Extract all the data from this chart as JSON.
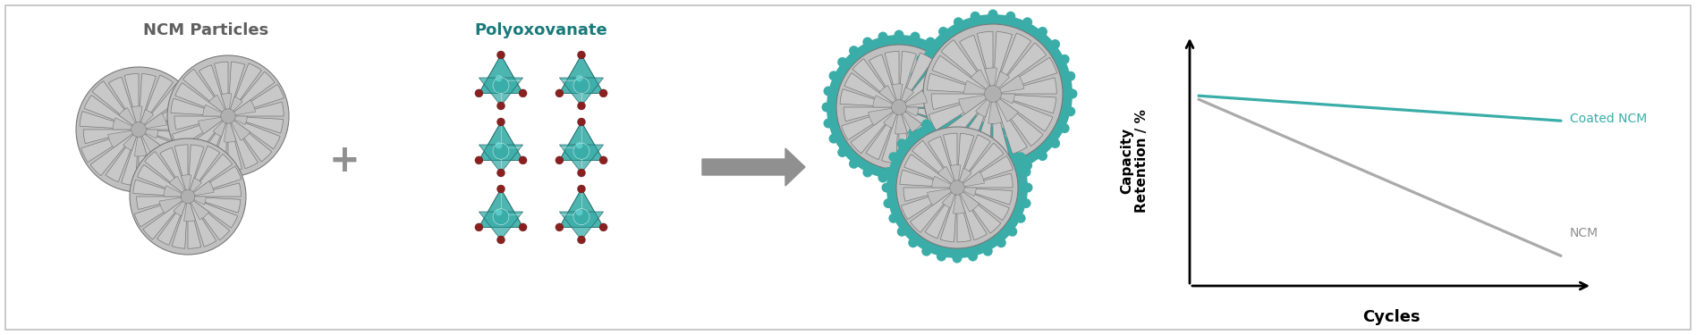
{
  "bg_color": "#ffffff",
  "border_color": "#c0c0c0",
  "ncm_color": "#b0b0b0",
  "ncm_edge_color": "#787878",
  "ncm_segment_color": "#c5c5c5",
  "ncm_inner_color": "#b8b8b8",
  "teal_color": "#3aada8",
  "teal_light": "#5ecfca",
  "teal_dark": "#1a7a75",
  "red_dot_color": "#8b2020",
  "arrow_color": "#909090",
  "plus_color": "#909090",
  "ncm_label": "NCM Particles",
  "poly_label": "Polyoxovanate",
  "graph_ylabel": "Capacity\nRetention / %",
  "graph_xlabel": "Cycles",
  "coated_label": "Coated NCM",
  "ncm_line_label": "NCM",
  "line_coated_color": "#3aada8",
  "line_ncm_color": "#aaaaaa",
  "label_color_ncm": "#606060",
  "label_color_poly": "#1a7a7a",
  "figsize": [
    18.96,
    3.75
  ],
  "dpi": 100
}
